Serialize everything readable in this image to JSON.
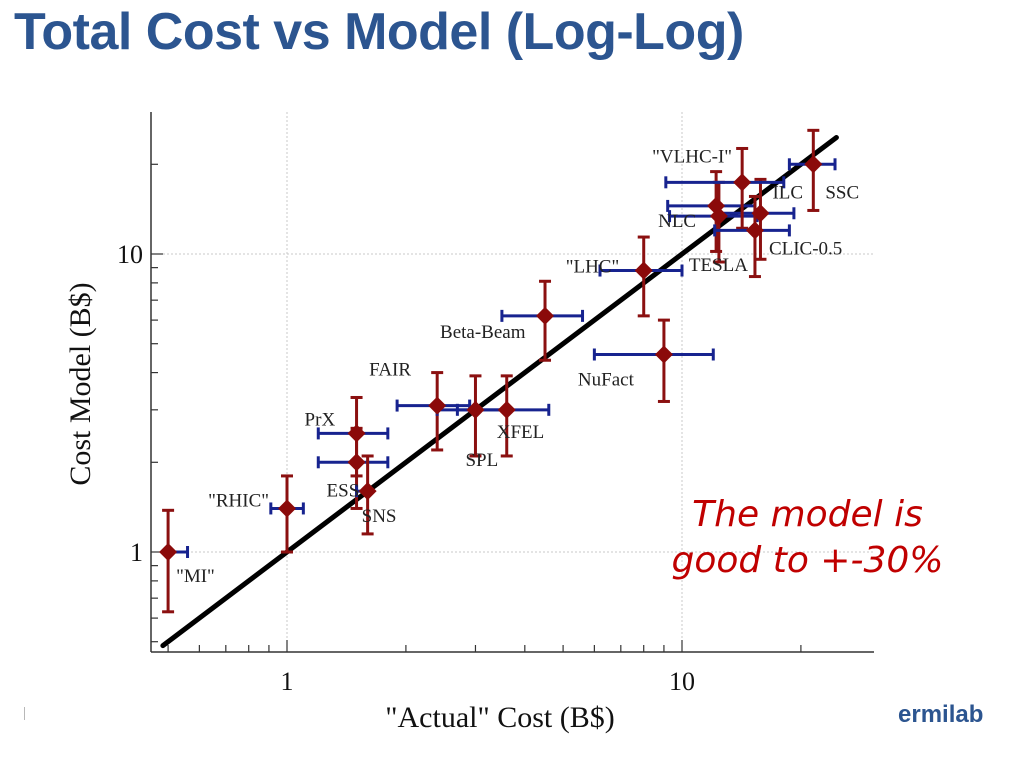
{
  "slide": {
    "title": "Total Cost vs Model (Log-Log)",
    "annotation_lines": [
      "The model is",
      "good to +-30%"
    ],
    "logo_text": "ermilab"
  },
  "colors": {
    "title": "#2c5590",
    "annotation": "#c00000",
    "point": "#8b0a0a",
    "y_error_bar": "#8b1010",
    "x_error_bar": "#17238f",
    "fit_line": "#000000",
    "grid": "#c8c8c8"
  },
  "chart_data": {
    "type": "scatter",
    "xscale": "log",
    "yscale": "log",
    "xlabel": "\"Actual\" Cost (B$)",
    "ylabel": "Cost Model (B$)",
    "xlim": [
      0.5,
      24.5
    ],
    "ylim": [
      0.5,
      28
    ],
    "x_ticks": [
      {
        "value": 1,
        "label": "1"
      },
      {
        "value": 10,
        "label": "10"
      }
    ],
    "y_ticks": [
      {
        "value": 1,
        "label": "1"
      },
      {
        "value": 10,
        "label": "10"
      }
    ],
    "grid": true,
    "reference_line": {
      "label": "",
      "slope": 1
    },
    "points": [
      {
        "label": "\"MI\"",
        "x": 0.5,
        "y": 1.0,
        "x_err": [
          0.5,
          0.56
        ],
        "y_err": [
          0.63,
          1.38
        ]
      },
      {
        "label": "\"RHIC\"",
        "x": 1.0,
        "y": 1.4,
        "x_err": [
          0.91,
          1.1
        ],
        "y_err": [
          1.0,
          1.8
        ]
      },
      {
        "label": "ESS",
        "x": 1.5,
        "y": 2.0,
        "x_err": [
          1.2,
          1.8
        ],
        "y_err": [
          1.4,
          2.6
        ]
      },
      {
        "label": "SNS",
        "x": 1.6,
        "y": 1.6,
        "x_err": [
          1.5,
          1.6
        ],
        "y_err": [
          1.15,
          2.1
        ]
      },
      {
        "label": "PrX",
        "x": 1.5,
        "y": 2.5,
        "x_err": [
          1.2,
          1.8
        ],
        "y_err": [
          1.8,
          3.3
        ]
      },
      {
        "label": "FAIR",
        "x": 2.4,
        "y": 3.1,
        "x_err": [
          1.9,
          2.9
        ],
        "y_err": [
          2.2,
          4.0
        ]
      },
      {
        "label": "SPL",
        "x": 3.0,
        "y": 3.0,
        "x_err": [
          2.4,
          3.6
        ],
        "y_err": [
          2.1,
          3.9
        ]
      },
      {
        "label": "XFEL",
        "x": 3.6,
        "y": 3.0,
        "x_err": [
          2.7,
          4.6
        ],
        "y_err": [
          2.1,
          3.9
        ]
      },
      {
        "label": "Beta-Beam",
        "x": 4.5,
        "y": 6.2,
        "x_err": [
          3.5,
          5.6
        ],
        "y_err": [
          4.4,
          8.1
        ]
      },
      {
        "label": "NuFact",
        "x": 9.0,
        "y": 4.6,
        "x_err": [
          6.0,
          12.0
        ],
        "y_err": [
          3.2,
          6.0
        ]
      },
      {
        "label": "\"LHC\"",
        "x": 8.0,
        "y": 8.8,
        "x_err": [
          6.2,
          10.0
        ],
        "y_err": [
          6.2,
          11.4
        ]
      },
      {
        "label": "TESLA",
        "x": 12.4,
        "y": 13.4,
        "x_err": [
          9.3,
          15.5
        ],
        "y_err": [
          9.4,
          17.4
        ]
      },
      {
        "label": "NLC",
        "x": 12.2,
        "y": 14.5,
        "x_err": [
          9.2,
          15.3
        ],
        "y_err": [
          10.2,
          18.9
        ]
      },
      {
        "label": "ILC",
        "x": 15.8,
        "y": 13.7,
        "x_err": [
          12.3,
          19.2
        ],
        "y_err": [
          9.6,
          17.8
        ]
      },
      {
        "label": "\"VLHC-I\"",
        "x": 14.2,
        "y": 17.4,
        "x_err": [
          9.1,
          18.1
        ],
        "y_err": [
          12.2,
          22.6
        ]
      },
      {
        "label": "CLIC-0.5",
        "x": 15.3,
        "y": 12.0,
        "x_err": [
          12.1,
          18.7
        ],
        "y_err": [
          8.4,
          15.6
        ]
      },
      {
        "label": "SSC",
        "x": 21.5,
        "y": 20.0,
        "x_err": [
          18.7,
          24.4
        ],
        "y_err": [
          14.0,
          26.0
        ]
      }
    ]
  }
}
